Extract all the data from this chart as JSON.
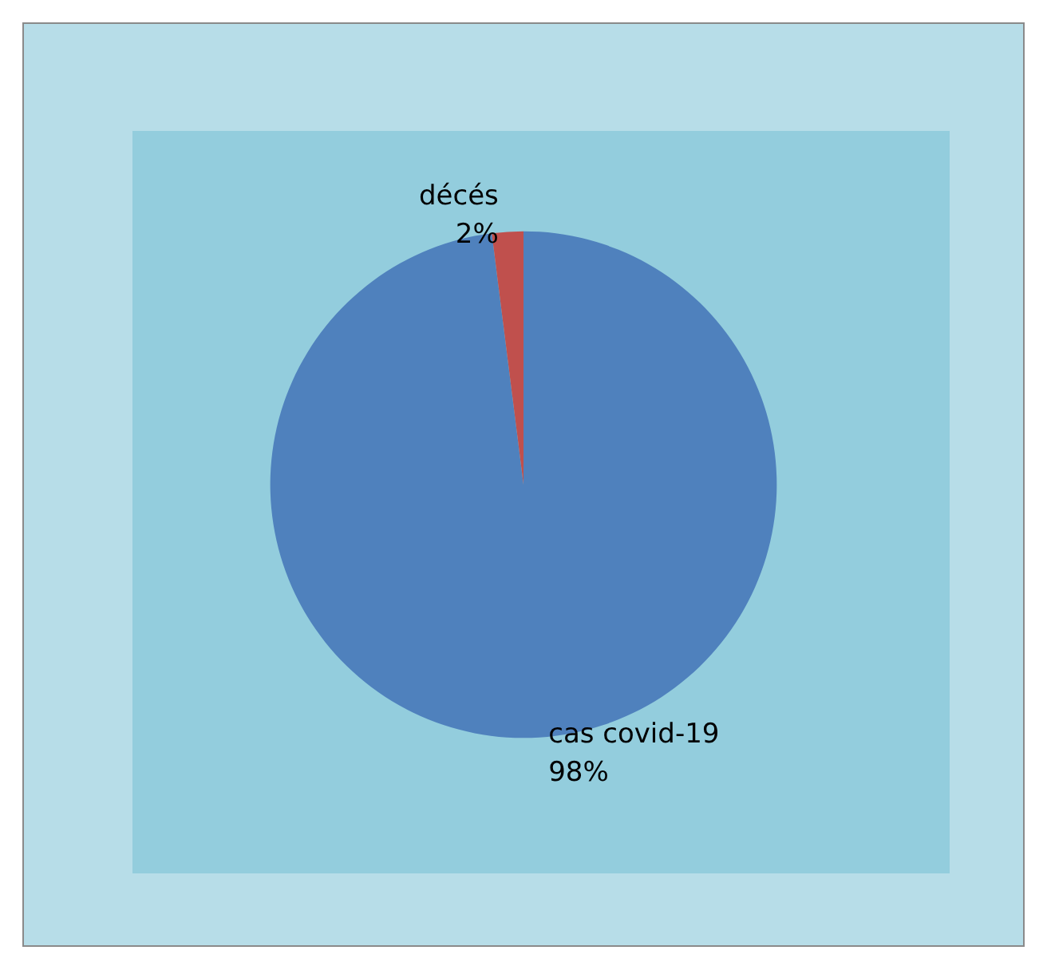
{
  "chart_data": {
    "type": "pie",
    "categories": [
      "cas covid-19",
      "décés"
    ],
    "values": [
      98,
      2
    ],
    "value_labels": [
      "98%",
      "2%"
    ],
    "colors": [
      "#4f81bd",
      "#c0504d"
    ],
    "legend": false
  }
}
